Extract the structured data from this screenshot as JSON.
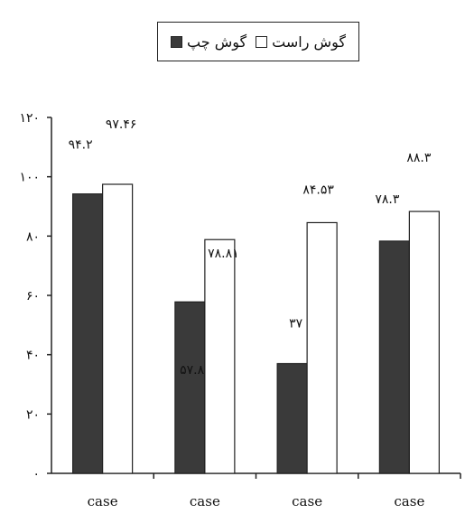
{
  "chart_data": {
    "type": "bar",
    "categories": [
      "case",
      "case",
      "case",
      "case"
    ],
    "series": [
      {
        "name": "گوش چپ",
        "color": "#3a3a3a",
        "values": [
          94.2,
          57.81,
          37,
          78.3
        ],
        "labels": [
          "۹۴.۲",
          "۵۷.۸۱",
          "۳۷",
          "۷۸.۳"
        ]
      },
      {
        "name": "گوش راست",
        "color": "#ffffff",
        "values": [
          97.46,
          78.81,
          84.53,
          88.3
        ],
        "labels": [
          "۹۷.۴۶",
          "۷۸.۸۱",
          "۸۴.۵۳",
          "۸۸.۳"
        ]
      }
    ],
    "ylim": [
      0,
      120
    ],
    "yticks": [
      0,
      20,
      40,
      60,
      80,
      100,
      120
    ],
    "ytick_labels": [
      "۰",
      "۲۰",
      "۴۰",
      "۶۰",
      "۸۰",
      "۱۰۰",
      "۱۲۰"
    ],
    "legend_position": "top-center",
    "grid": false
  }
}
